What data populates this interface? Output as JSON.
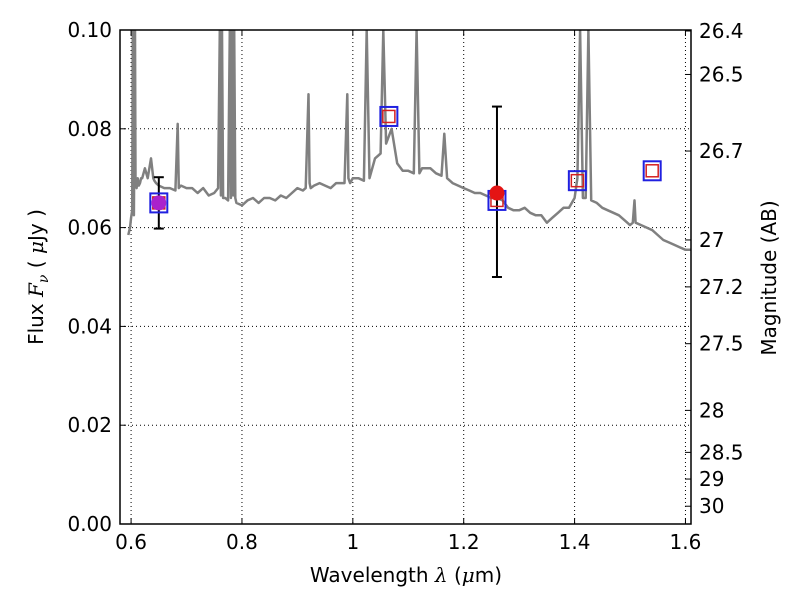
{
  "chart_data": {
    "type": "line",
    "xlabel": "Wavelength  λ (μm)",
    "ylabel": "Flux  F_ν  ( μJy )",
    "ylabel_parts": {
      "pre": "Flux  ",
      "var": "F",
      "sub": "ν",
      "mid": "  ( ",
      "mu": "μ",
      "post": "Jy )"
    },
    "xlabel_parts": {
      "pre": "Wavelength  ",
      "var": "λ",
      "mid": " (",
      "mu": "μ",
      "post": "m)"
    },
    "y2label": "Magnitude (AB)",
    "xlim": [
      0.58,
      1.61
    ],
    "ylim": [
      0.0,
      0.1
    ],
    "grid": true,
    "x_ticks": [
      0.6,
      0.8,
      1.0,
      1.2,
      1.4,
      1.6
    ],
    "x_tick_labels": [
      "0.6",
      "0.8",
      "1",
      "1.2",
      "1.4",
      "1.6"
    ],
    "y_ticks": [
      0.0,
      0.02,
      0.04,
      0.06,
      0.08,
      0.1
    ],
    "y_tick_labels": [
      "0.00",
      "0.02",
      "0.04",
      "0.06",
      "0.08",
      "0.10"
    ],
    "y2_ticks": [
      {
        "label": "26.4",
        "flux": 0.0998
      },
      {
        "label": "26.5",
        "flux": 0.091
      },
      {
        "label": "26.7",
        "flux": 0.0755
      },
      {
        "label": "27",
        "flux": 0.0575
      },
      {
        "label": "27.2",
        "flux": 0.048
      },
      {
        "label": "27.5",
        "flux": 0.0365
      },
      {
        "label": "28",
        "flux": 0.023
      },
      {
        "label": "28.5",
        "flux": 0.0145
      },
      {
        "label": "29",
        "flux": 0.0091
      },
      {
        "label": "30",
        "flux": 0.0036
      }
    ],
    "series": [
      {
        "kind": "model-spectrum",
        "color": "#808080",
        "x": [
          0.595,
          0.598,
          0.6,
          0.602,
          0.603,
          0.605,
          0.607,
          0.608,
          0.61,
          0.612,
          0.614,
          0.616,
          0.618,
          0.62,
          0.625,
          0.63,
          0.636,
          0.64,
          0.642,
          0.645,
          0.65,
          0.66,
          0.67,
          0.68,
          0.684,
          0.686,
          0.69,
          0.7,
          0.71,
          0.72,
          0.73,
          0.74,
          0.75,
          0.757,
          0.76,
          0.762,
          0.764,
          0.766,
          0.77,
          0.775,
          0.778,
          0.78,
          0.782,
          0.784,
          0.786,
          0.788,
          0.79,
          0.8,
          0.81,
          0.82,
          0.83,
          0.84,
          0.85,
          0.86,
          0.87,
          0.88,
          0.89,
          0.9,
          0.91,
          0.915,
          0.92,
          0.922,
          0.924,
          0.93,
          0.94,
          0.95,
          0.96,
          0.97,
          0.98,
          0.985,
          0.99,
          0.992,
          0.995,
          1.0,
          1.01,
          1.02,
          1.025,
          1.03,
          1.04,
          1.05,
          1.055,
          1.06,
          1.07,
          1.08,
          1.09,
          1.1,
          1.11,
          1.115,
          1.12,
          1.125,
          1.13,
          1.14,
          1.15,
          1.16,
          1.165,
          1.17,
          1.18,
          1.19,
          1.2,
          1.21,
          1.22,
          1.23,
          1.24,
          1.25,
          1.255,
          1.26,
          1.27,
          1.28,
          1.29,
          1.3,
          1.31,
          1.32,
          1.33,
          1.34,
          1.35,
          1.36,
          1.37,
          1.38,
          1.39,
          1.4,
          1.405,
          1.41,
          1.415,
          1.42,
          1.425,
          1.43,
          1.44,
          1.45,
          1.46,
          1.47,
          1.48,
          1.49,
          1.5,
          1.505,
          1.508,
          1.51,
          1.52,
          1.53,
          1.54,
          1.55,
          1.56,
          1.57,
          1.58,
          1.59,
          1.6,
          1.61
        ],
        "y": [
          0.0585,
          0.06,
          0.062,
          0.0635,
          0.1,
          0.0625,
          0.1,
          0.07,
          0.068,
          0.07,
          0.0685,
          0.069,
          0.07,
          0.07,
          0.072,
          0.07,
          0.074,
          0.07,
          0.0695,
          0.069,
          0.0685,
          0.068,
          0.068,
          0.0675,
          0.081,
          0.068,
          0.0685,
          0.068,
          0.068,
          0.067,
          0.068,
          0.0665,
          0.067,
          0.068,
          0.1,
          0.0665,
          0.1,
          0.066,
          0.066,
          0.0655,
          0.1,
          0.066,
          0.1,
          0.0665,
          0.1,
          0.066,
          0.065,
          0.0645,
          0.0655,
          0.066,
          0.065,
          0.066,
          0.066,
          0.0655,
          0.0665,
          0.066,
          0.067,
          0.068,
          0.0675,
          0.068,
          0.087,
          0.069,
          0.068,
          0.0685,
          0.069,
          0.0685,
          0.068,
          0.069,
          0.069,
          0.069,
          0.087,
          0.07,
          0.069,
          0.07,
          0.07,
          0.0695,
          0.1,
          0.07,
          0.074,
          0.075,
          0.1,
          0.077,
          0.08,
          0.073,
          0.0715,
          0.0715,
          0.071,
          0.1,
          0.071,
          0.072,
          0.072,
          0.072,
          0.071,
          0.0705,
          0.079,
          0.07,
          0.069,
          0.0685,
          0.068,
          0.0675,
          0.067,
          0.067,
          0.0665,
          0.066,
          0.066,
          0.066,
          0.0655,
          0.064,
          0.0635,
          0.0635,
          0.064,
          0.063,
          0.0625,
          0.0625,
          0.061,
          0.062,
          0.063,
          0.064,
          0.064,
          0.066,
          0.07,
          0.1,
          0.066,
          0.066,
          0.1,
          0.0655,
          0.065,
          0.064,
          0.0635,
          0.063,
          0.0625,
          0.0615,
          0.0605,
          0.061,
          0.0655,
          0.061,
          0.0605,
          0.06,
          0.0595,
          0.0585,
          0.0575,
          0.057,
          0.0565,
          0.056,
          0.0555,
          0.0555
        ]
      },
      {
        "kind": "model-photometry",
        "marker": "open-square",
        "colors": [
          "#d42020",
          "#2020e0"
        ],
        "points": [
          {
            "x": 0.65,
            "y": 0.065
          },
          {
            "x": 1.065,
            "y": 0.0825
          },
          {
            "x": 1.26,
            "y": 0.0655
          },
          {
            "x": 1.405,
            "y": 0.0695
          },
          {
            "x": 1.54,
            "y": 0.0715
          }
        ]
      },
      {
        "kind": "observed-photometry",
        "marker": "filled-circle",
        "points": [
          {
            "x": 0.65,
            "y": 0.065,
            "yerr_low": 0.0598,
            "yerr_high": 0.0702,
            "color": "#aa22cc"
          },
          {
            "x": 1.26,
            "y": 0.067,
            "yerr_low": 0.05,
            "yerr_high": 0.0845,
            "color": "#e41414"
          }
        ]
      }
    ]
  }
}
